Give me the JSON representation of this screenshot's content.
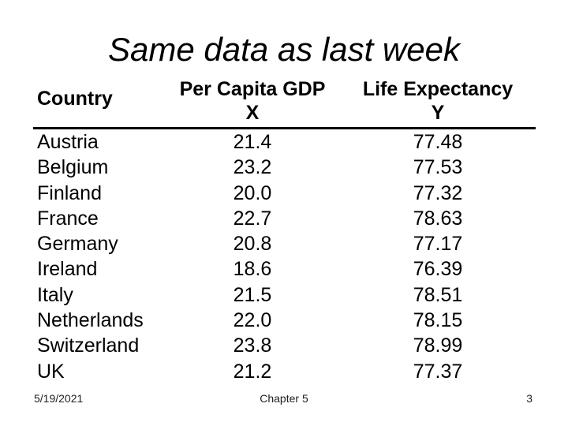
{
  "slide": {
    "title": "Same data as last week",
    "table": {
      "header": {
        "country": "Country",
        "gdp_title": "Per Capita GDP",
        "gdp_symbol": "X",
        "life_title": "Life Expectancy",
        "life_symbol": "Y"
      },
      "rows": [
        {
          "country": "Austria",
          "gdp": "21.4",
          "life": "77.48"
        },
        {
          "country": "Belgium",
          "gdp": "23.2",
          "life": "77.53"
        },
        {
          "country": "Finland",
          "gdp": "20.0",
          "life": "77.32"
        },
        {
          "country": "France",
          "gdp": "22.7",
          "life": "78.63"
        },
        {
          "country": "Germany",
          "gdp": "20.8",
          "life": "77.17"
        },
        {
          "country": "Ireland",
          "gdp": "18.6",
          "life": "76.39"
        },
        {
          "country": "Italy",
          "gdp": "21.5",
          "life": "78.51"
        },
        {
          "country": "Netherlands",
          "gdp": "22.0",
          "life": "78.15"
        },
        {
          "country": "Switzerland",
          "gdp": "23.8",
          "life": "78.99"
        },
        {
          "country": "UK",
          "gdp": "21.2",
          "life": "77.37"
        }
      ]
    },
    "footer": {
      "date": "5/19/2021",
      "chapter": "Chapter 5",
      "page_number": "3"
    },
    "colors": {
      "background": "#ffffff",
      "text": "#000000",
      "rule": "#000000"
    }
  },
  "chart_data": {
    "type": "table",
    "title": "Same data as last week",
    "columns": [
      "Country",
      "Per Capita GDP X",
      "Life Expectancy Y"
    ],
    "rows": [
      [
        "Austria",
        21.4,
        77.48
      ],
      [
        "Belgium",
        23.2,
        77.53
      ],
      [
        "Finland",
        20.0,
        77.32
      ],
      [
        "France",
        22.7,
        78.63
      ],
      [
        "Germany",
        20.8,
        77.17
      ],
      [
        "Ireland",
        18.6,
        76.39
      ],
      [
        "Italy",
        21.5,
        78.51
      ],
      [
        "Netherlands",
        22.0,
        78.15
      ],
      [
        "Switzerland",
        23.8,
        78.99
      ],
      [
        "UK",
        21.2,
        77.37
      ]
    ]
  }
}
